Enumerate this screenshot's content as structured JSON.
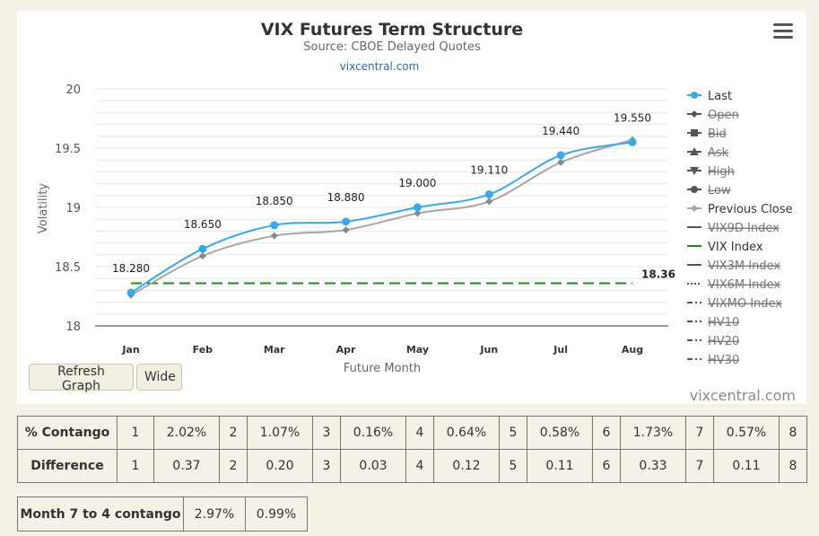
{
  "chart": {
    "menu_icon": "hamburger-icon",
    "credit": "vixcentral.com",
    "buttons": {
      "refresh": "Refresh Graph",
      "wide": "Wide"
    }
  },
  "chart_data": {
    "type": "line",
    "title": "VIX Futures Term Structure",
    "subtitle": "Source: CBOE Delayed Quotes",
    "subtitle_link": "vixcentral.com",
    "xlabel": "Future Month",
    "ylabel": "Volatility",
    "categories": [
      "Jan",
      "Feb",
      "Mar",
      "Apr",
      "May",
      "Jun",
      "Jul",
      "Aug"
    ],
    "ylim": [
      18,
      20
    ],
    "yticks": [
      "20",
      "19.5",
      "19",
      "18.5",
      "18"
    ],
    "ytick_values": [
      20,
      19.5,
      19,
      18.5,
      18
    ],
    "grid": true,
    "legend_position": "right",
    "series": [
      {
        "name": "Last",
        "values": [
          18.28,
          18.65,
          18.85,
          18.88,
          19.0,
          19.11,
          19.44,
          19.55
        ],
        "labels": [
          "18.280",
          "18.650",
          "18.850",
          "18.880",
          "19.000",
          "19.110",
          "19.440",
          "19.550"
        ],
        "color": "#3aa7e8"
      },
      {
        "name": "Previous Close",
        "values": [
          18.26,
          18.59,
          18.76,
          18.81,
          18.95,
          19.05,
          19.38,
          19.57
        ],
        "color": "#a6a6a6"
      },
      {
        "name": "VIX Index",
        "values": [
          18.36,
          18.36,
          18.36,
          18.36,
          18.36,
          18.36,
          18.36,
          18.36
        ],
        "label": "18.36",
        "color": "#1e8a1e"
      }
    ],
    "legend": [
      {
        "name": "Last",
        "active": true,
        "icon": "circle-marker",
        "color": "#3aa7e8"
      },
      {
        "name": "Open",
        "active": false,
        "icon": "diamond-marker",
        "color": "#555555"
      },
      {
        "name": "Bid",
        "active": false,
        "icon": "square-marker",
        "color": "#555555"
      },
      {
        "name": "Ask",
        "active": false,
        "icon": "triangle-up-marker",
        "color": "#555555"
      },
      {
        "name": "High",
        "active": false,
        "icon": "triangle-down-marker",
        "color": "#555555"
      },
      {
        "name": "Low",
        "active": false,
        "icon": "circle-marker",
        "color": "#555555"
      },
      {
        "name": "Previous Close",
        "active": true,
        "icon": "diamond-marker",
        "color": "#a6a6a6"
      },
      {
        "name": "VIX9D Index",
        "active": false,
        "icon": "solid-line",
        "color": "#555555"
      },
      {
        "name": "VIX Index",
        "active": true,
        "icon": "solid-line",
        "color": "#1e8a1e"
      },
      {
        "name": "VIX3M Index",
        "active": false,
        "icon": "solid-line",
        "color": "#555555"
      },
      {
        "name": "VIX6M Index",
        "active": false,
        "icon": "dotted-line",
        "color": "#555555"
      },
      {
        "name": "VIXMO Index",
        "active": false,
        "icon": "dash-dot-line",
        "color": "#555555"
      },
      {
        "name": "HV10",
        "active": false,
        "icon": "dash-dot-line",
        "color": "#555555"
      },
      {
        "name": "HV20",
        "active": false,
        "icon": "dash-dot-line",
        "color": "#555555"
      },
      {
        "name": "HV30",
        "active": false,
        "icon": "dash-dot-line",
        "color": "#555555"
      }
    ]
  },
  "contango_table": {
    "rows": [
      {
        "label": "% Contango",
        "cells": [
          "1",
          "2.02%",
          "2",
          "1.07%",
          "3",
          "0.16%",
          "4",
          "0.64%",
          "5",
          "0.58%",
          "6",
          "1.73%",
          "7",
          "0.57%",
          "8"
        ]
      },
      {
        "label": "Difference",
        "cells": [
          "1",
          "0.37",
          "2",
          "0.20",
          "3",
          "0.03",
          "4",
          "0.12",
          "5",
          "0.11",
          "6",
          "0.33",
          "7",
          "0.11",
          "8"
        ]
      }
    ]
  },
  "month_table": {
    "label": "Month 7 to 4 contango",
    "cells": [
      "2.97%",
      "0.99%"
    ]
  }
}
